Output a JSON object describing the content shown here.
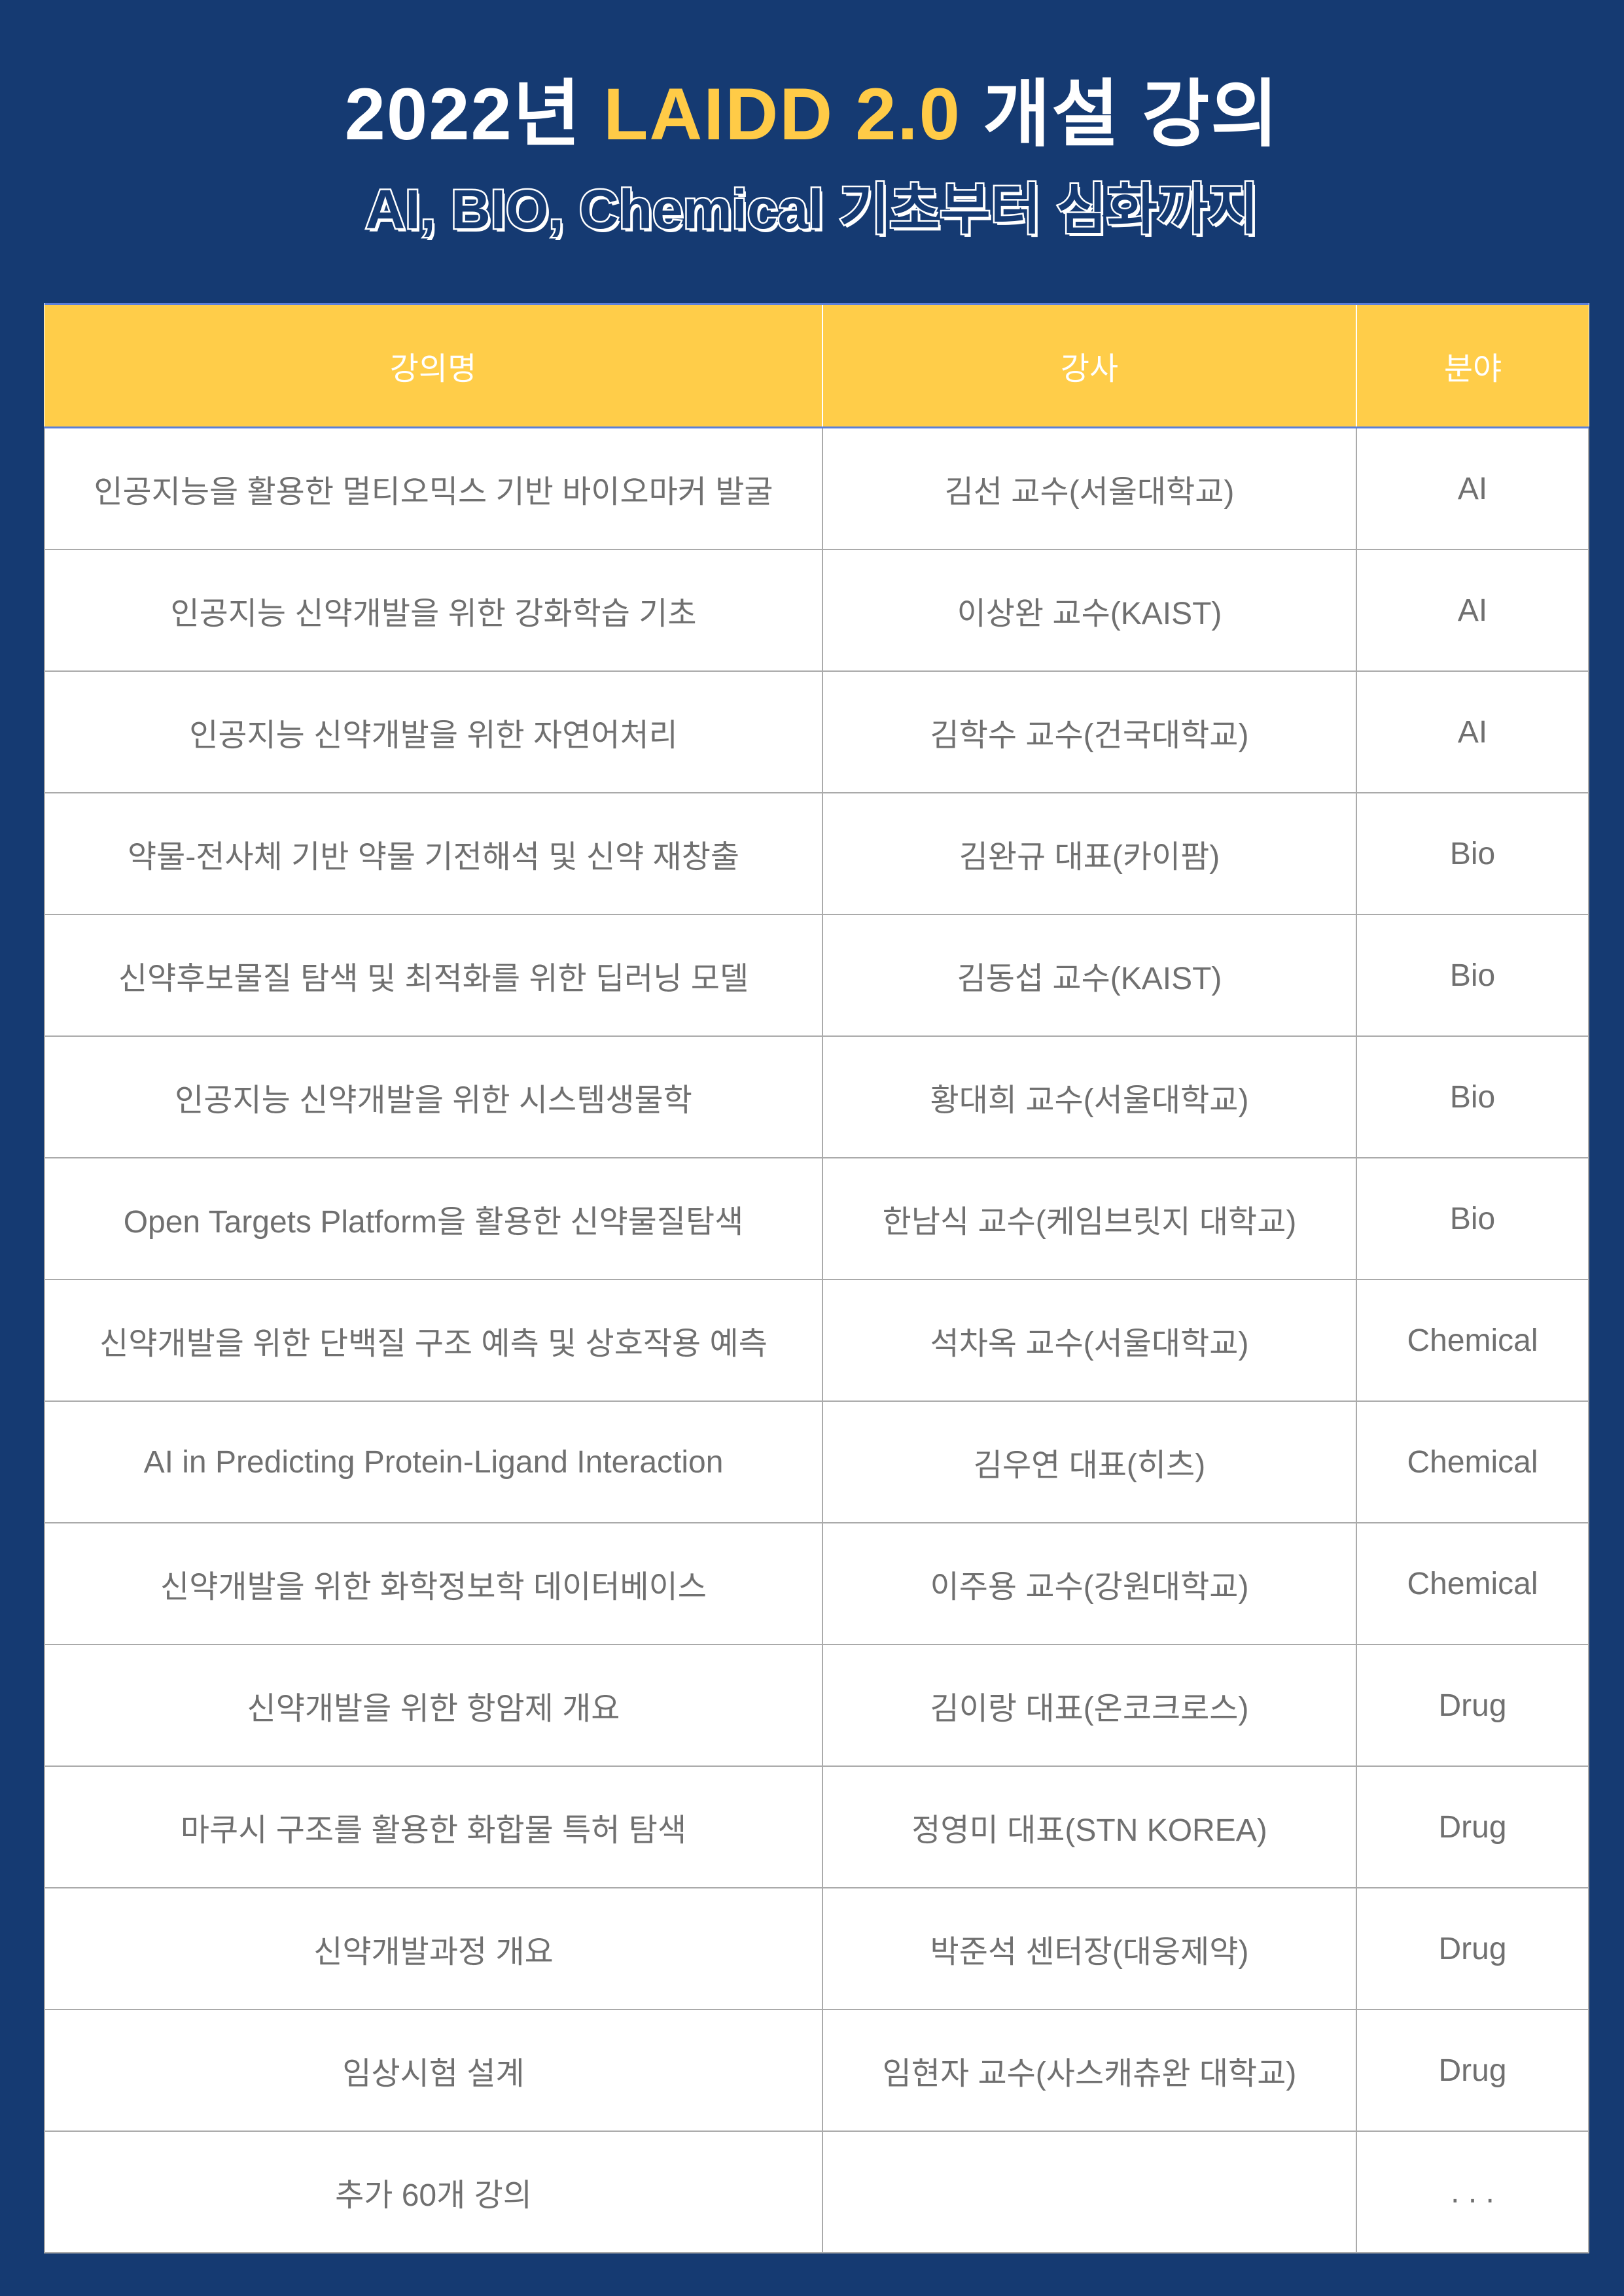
{
  "header": {
    "title_prefix": "2022년",
    "title_accent": "LAIDD 2.0",
    "title_suffix": "개설 강의",
    "subtitle": "AI, BIO, Chemical 기초부터 심화까지",
    "colors": {
      "background": "#153a72",
      "accent": "#ffcb47",
      "table_header": "#ffcd49"
    }
  },
  "table": {
    "columns": [
      "강의명",
      "강사",
      "분야"
    ],
    "rows": [
      [
        "인공지능을 활용한 멀티오믹스 기반 바이오마커 발굴",
        "김선 교수(서울대학교)",
        "AI"
      ],
      [
        "인공지능 신약개발을 위한 강화학습 기초",
        "이상완 교수(KAIST)",
        "AI"
      ],
      [
        "인공지능 신약개발을 위한 자연어처리",
        "김학수 교수(건국대학교)",
        "AI"
      ],
      [
        "약물-전사체 기반 약물 기전해석 및 신약 재창출",
        "김완규 대표(카이팜)",
        "Bio"
      ],
      [
        "신약후보물질 탐색 및 최적화를 위한 딥러닝 모델",
        "김동섭 교수(KAIST)",
        "Bio"
      ],
      [
        "인공지능 신약개발을 위한 시스템생물학",
        "황대희 교수(서울대학교)",
        "Bio"
      ],
      [
        "Open Targets Platform을 활용한 신약물질탐색",
        "한남식 교수(케임브릿지 대학교)",
        "Bio"
      ],
      [
        "신약개발을 위한 단백질 구조 예측 및 상호작용 예측",
        "석차옥 교수(서울대학교)",
        "Chemical"
      ],
      [
        "AI in Predicting Protein-Ligand Interaction",
        "김우연 대표(히츠)",
        "Chemical"
      ],
      [
        "신약개발을 위한 화학정보학 데이터베이스",
        "이주용 교수(강원대학교)",
        "Chemical"
      ],
      [
        "신약개발을 위한 항암제 개요",
        "김이랑 대표(온코크로스)",
        "Drug"
      ],
      [
        "마쿠시 구조를 활용한 화합물 특허 탐색",
        "정영미 대표(STN KOREA)",
        "Drug"
      ],
      [
        "신약개발과정 개요",
        "박준석 센터장(대웅제약)",
        "Drug"
      ],
      [
        "임상시험 설계",
        "임현자 교수(사스캐츄완 대학교)",
        "Drug"
      ],
      [
        "추가 60개 강의",
        "",
        ". . ."
      ]
    ]
  }
}
